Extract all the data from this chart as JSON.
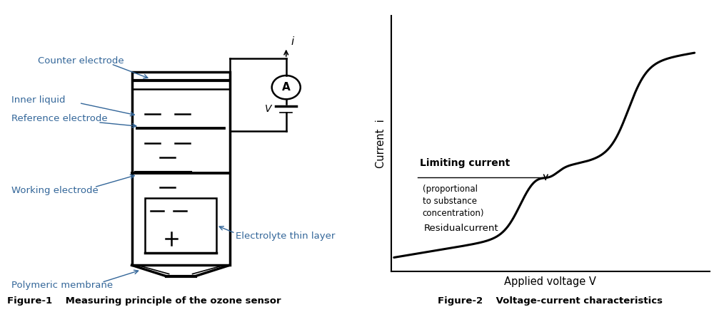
{
  "fig_width": 10.14,
  "fig_height": 4.38,
  "bg_color": "#ffffff",
  "label_color": "#336699",
  "black": "#000000",
  "fig1_caption": "Figure-1    Measuring principle of the ozone sensor",
  "fig2_caption": "Figure-2    Voltage-current characteristics",
  "fig2_ylabel": "Current  i",
  "fig2_xlabel": "Applied voltage V",
  "fig2_label_limiting": "Limiting current",
  "fig2_label_proportional": "(proportional\nto substance\nconcentration)",
  "fig2_label_residual": "Residualcurrent"
}
